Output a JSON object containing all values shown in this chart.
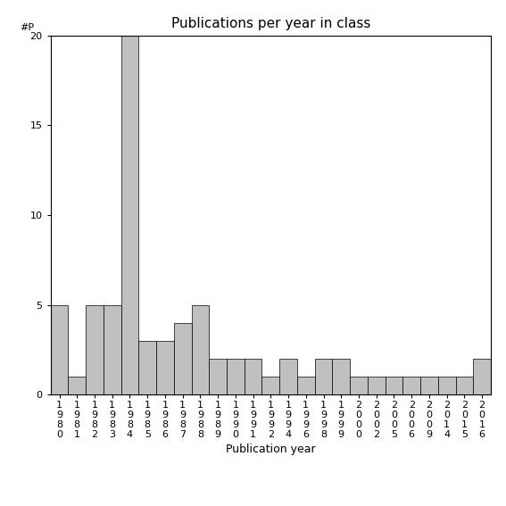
{
  "categories": [
    "1980",
    "1981",
    "1982",
    "1983",
    "1984",
    "1985",
    "1986",
    "1987",
    "1988",
    "1989",
    "1990",
    "1991",
    "1992",
    "1994",
    "1996",
    "1998",
    "1999",
    "2000",
    "2002",
    "2005",
    "2006",
    "2009",
    "2014",
    "2015",
    "2016"
  ],
  "values": [
    5,
    1,
    5,
    5,
    20,
    3,
    3,
    4,
    5,
    2,
    2,
    2,
    1,
    2,
    1,
    2,
    2,
    1,
    1,
    1,
    1,
    1,
    1,
    1,
    2
  ],
  "bar_color": "#c0c0c0",
  "bar_edge_color": "#000000",
  "title": "Publications per year in class",
  "xlabel": "Publication year",
  "ylabel": "#P",
  "ylim": [
    0,
    20
  ],
  "yticks": [
    0,
    5,
    10,
    15,
    20
  ],
  "bg_color": "#ffffff",
  "title_fontsize": 11,
  "label_fontsize": 9,
  "tick_fontsize": 8
}
